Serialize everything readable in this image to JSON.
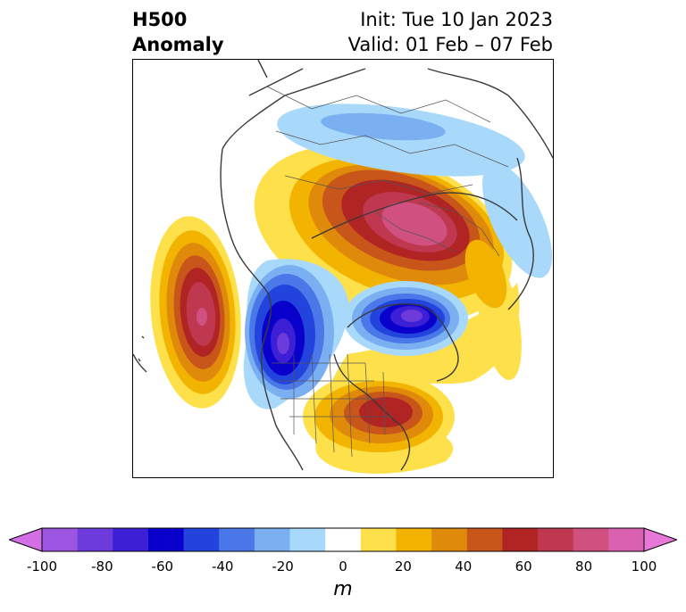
{
  "title": {
    "line1": "H500",
    "line2": "Anomaly"
  },
  "subtitle": {
    "line1": "Init: Tue 10 Jan 2023",
    "line2": "Valid: 01 Feb – 07 Feb"
  },
  "colorbar": {
    "unit": "m",
    "ticks": [
      "-100",
      "-80",
      "-60",
      "-40",
      "-20",
      "0",
      "20",
      "40",
      "60",
      "80",
      "100"
    ],
    "colors": [
      "#d46ee6",
      "#9b55e0",
      "#6d3bdb",
      "#3d1fd6",
      "#0a00cc",
      "#2244dd",
      "#4a78e8",
      "#7ab0f2",
      "#a9d9fa",
      "#ffffff",
      "#fde04a",
      "#f2b400",
      "#e08a0b",
      "#c8551a",
      "#b02424",
      "#c03850",
      "#d05080",
      "#da60b0",
      "#e878d8"
    ]
  },
  "map": {
    "colors": {
      "coast": "#3a3a3a",
      "border": "#555555"
    }
  }
}
